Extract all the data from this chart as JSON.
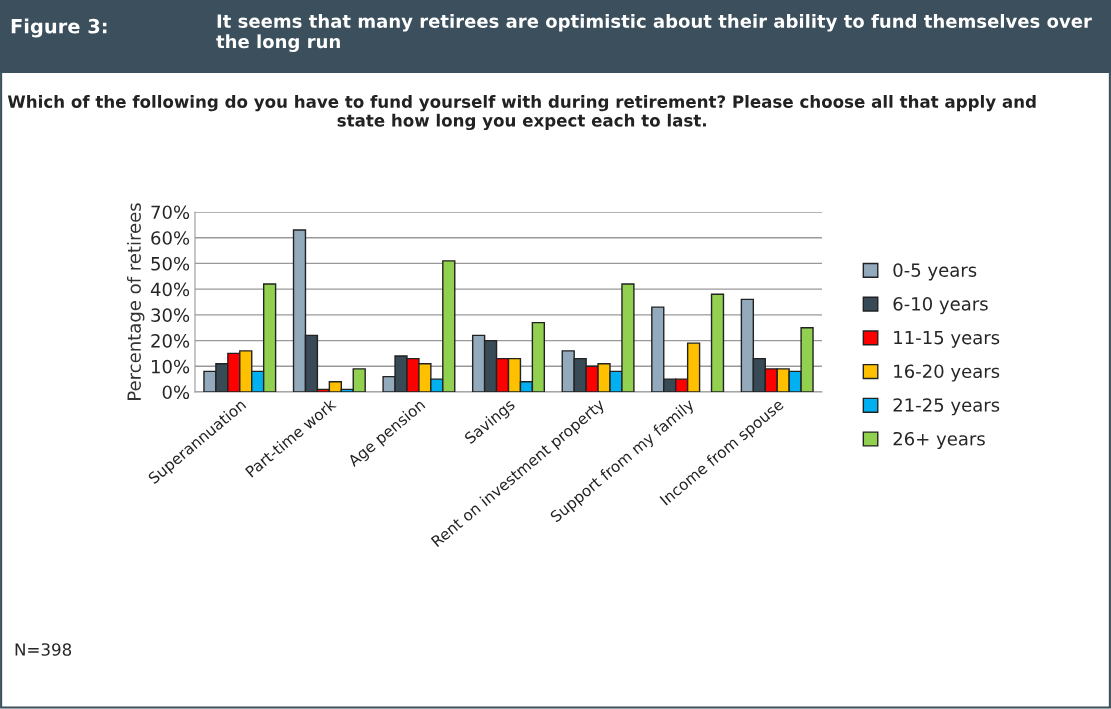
{
  "chart_data": {
    "type": "bar",
    "title": "It seems that many retirees are optimistic about their ability to fund themselves over the long run",
    "subtitle": "Which of the following do you have to fund yourself with during retirement? Please choose all that apply and state how long you expect each to last.",
    "ylabel": "Percentage of retirees",
    "annotations": [
      "Figure 3:",
      "N=398"
    ],
    "categories": [
      "Superannuation",
      "Part-time work",
      "Age pension",
      "Savings",
      "Rent on investment property",
      "Support from my family",
      "Income from spouse"
    ],
    "series": [
      {
        "name": "0-5 years",
        "color": "#93a9bc",
        "values": [
          8,
          63,
          6,
          22,
          16,
          33,
          36
        ]
      },
      {
        "name": "6-10 years",
        "color": "#374a56",
        "values": [
          11,
          22,
          14,
          20,
          13,
          5,
          13
        ]
      },
      {
        "name": "11-15 years",
        "color": "#ff0000",
        "values": [
          15,
          1,
          13,
          13,
          10,
          5,
          9
        ]
      },
      {
        "name": "16-20 years",
        "color": "#ffc000",
        "values": [
          16,
          4,
          11,
          13,
          11,
          19,
          9
        ]
      },
      {
        "name": "21-25 years",
        "color": "#00b0f0",
        "values": [
          8,
          1,
          5,
          4,
          8,
          null,
          8
        ]
      },
      {
        "name": "26+ years",
        "color": "#92d050",
        "values": [
          42,
          9,
          51,
          27,
          42,
          38,
          25
        ]
      }
    ],
    "ylim": [
      0,
      70
    ],
    "yticks": [
      {
        "value": 0,
        "label": "0%"
      },
      {
        "value": 10,
        "label": "10%"
      },
      {
        "value": 20,
        "label": "20%"
      },
      {
        "value": 30,
        "label": "30%"
      },
      {
        "value": 40,
        "label": "40%"
      },
      {
        "value": 50,
        "label": "50%"
      },
      {
        "value": 60,
        "label": "60%"
      },
      {
        "value": 70,
        "label": "70%"
      }
    ],
    "grid": "y",
    "legend": "right"
  }
}
